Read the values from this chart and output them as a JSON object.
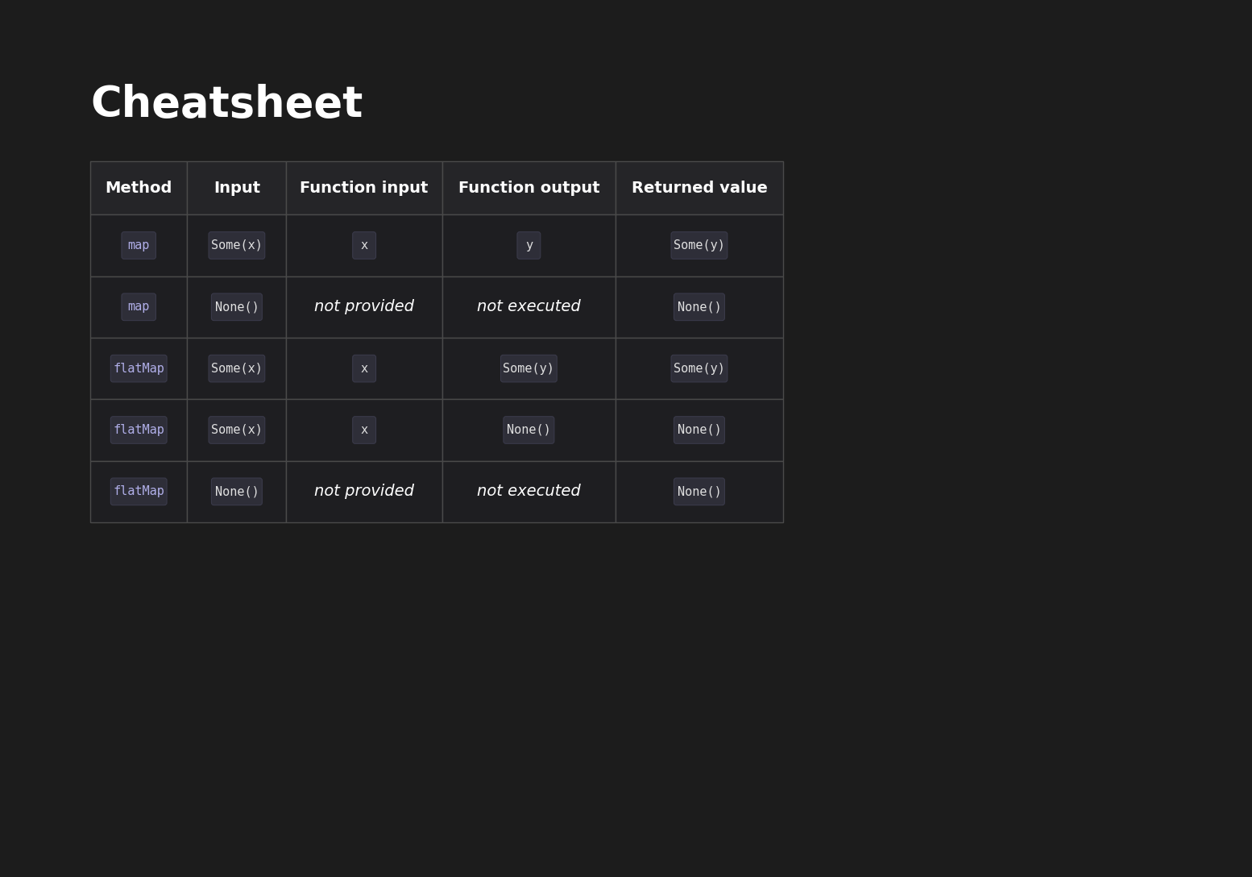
{
  "title": "Cheatsheet",
  "background_color": "#1c1c1c",
  "table_border_color": "#4a4a4a",
  "header_bg_color": "#252528",
  "row_bg_color": "#1e1e21",
  "header_text_color": "#ffffff",
  "cell_text_color": "#ffffff",
  "badge_bg": "#2e2e38",
  "badge_border": "#3a3a4a",
  "badge_text_method": "#b0aee8",
  "badge_text_value": "#e0e0e0",
  "columns": [
    "Method",
    "Input",
    "Function input",
    "Function output",
    "Returned value"
  ],
  "rows": [
    {
      "method": "map",
      "input": "Some(x)",
      "func_input": "x",
      "func_output": "y",
      "returned": "Some(y)",
      "func_input_italic": false,
      "func_output_italic": false
    },
    {
      "method": "map",
      "input": "None()",
      "func_input": "not provided",
      "func_output": "not executed",
      "returned": "None()",
      "func_input_italic": true,
      "func_output_italic": true
    },
    {
      "method": "flatMap",
      "input": "Some(x)",
      "func_input": "x",
      "func_output": "Some(y)",
      "returned": "Some(y)",
      "func_input_italic": false,
      "func_output_italic": false
    },
    {
      "method": "flatMap",
      "input": "Some(x)",
      "func_input": "x",
      "func_output": "None()",
      "returned": "None()",
      "func_input_italic": false,
      "func_output_italic": false
    },
    {
      "method": "flatMap",
      "input": "None()",
      "func_input": "not provided",
      "func_output": "not executed",
      "returned": "None()",
      "func_input_italic": true,
      "func_output_italic": true
    }
  ]
}
